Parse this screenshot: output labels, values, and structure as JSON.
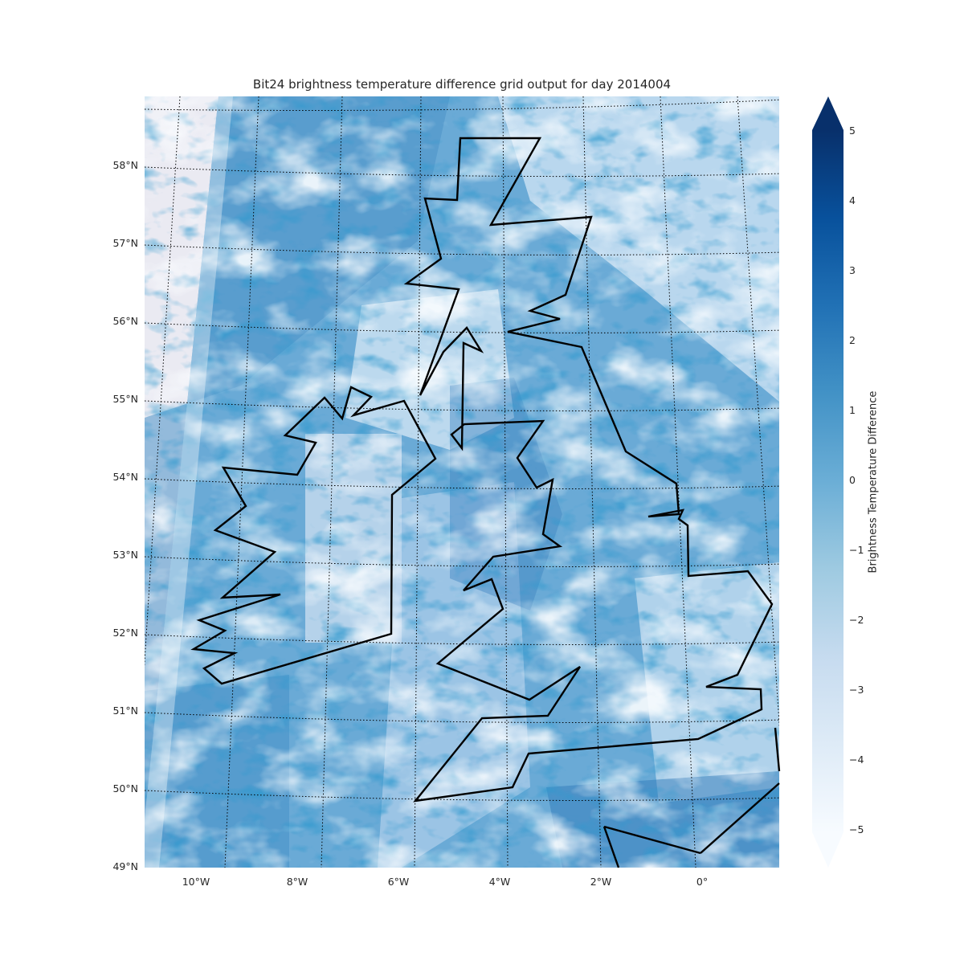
{
  "title": "Bit24 brightness temperature difference grid output for day 2014004",
  "map": {
    "lat_labels": [
      "58°N",
      "57°N",
      "56°N",
      "55°N",
      "54°N",
      "53°N",
      "52°N",
      "51°N",
      "50°N",
      "49°N"
    ],
    "lon_labels": [
      "10°W",
      "8°W",
      "6°W",
      "4°W",
      "2°W",
      "0°"
    ],
    "lat_range": [
      49,
      59
    ],
    "lon_range": [
      -11,
      1.6
    ],
    "gridlines": "dotted",
    "coastline_color": "#000000"
  },
  "colorbar": {
    "label": "Brightness Temperature Difference",
    "ticks": [
      "5",
      "4",
      "3",
      "2",
      "1",
      "0",
      "−1",
      "−2",
      "−3",
      "−4",
      "−5"
    ],
    "range": [
      -5,
      5
    ],
    "extend": "both",
    "colormap": "Blues",
    "colors": [
      "#f7fbff",
      "#deebf7",
      "#c6dbef",
      "#9ecae1",
      "#6baed6",
      "#4292c6",
      "#2171b5",
      "#08519c",
      "#08306b"
    ]
  }
}
